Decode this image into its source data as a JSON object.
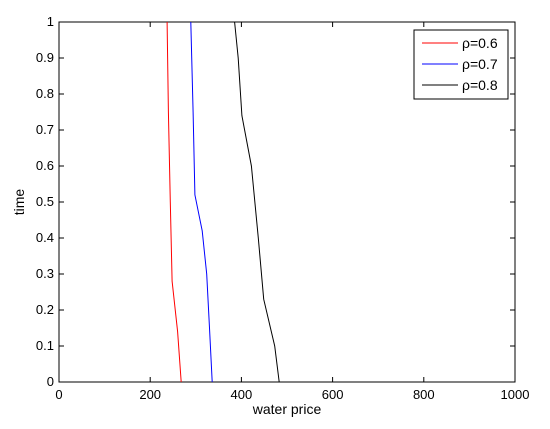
{
  "chart_data": {
    "type": "line",
    "title": "",
    "xlabel": "water price",
    "ylabel": "time",
    "xlim": [
      0,
      1000
    ],
    "ylim": [
      0,
      1
    ],
    "xticks": [
      0,
      200,
      400,
      600,
      800,
      1000
    ],
    "yticks": [
      0,
      0.1,
      0.2,
      0.3,
      0.4,
      0.5,
      0.6,
      0.7,
      0.8,
      0.9,
      1
    ],
    "grid": false,
    "legend_position": "top-right",
    "series": [
      {
        "name": "ρ=0.6",
        "color": "#ff0000",
        "points": [
          [
            268,
            0
          ],
          [
            260,
            0.14
          ],
          [
            248,
            0.28
          ],
          [
            244,
            0.5
          ],
          [
            240,
            0.75
          ],
          [
            237,
            1
          ]
        ]
      },
      {
        "name": "ρ=0.7",
        "color": "#0000ff",
        "points": [
          [
            336,
            0
          ],
          [
            330,
            0.15
          ],
          [
            324,
            0.3
          ],
          [
            314,
            0.42
          ],
          [
            298,
            0.52
          ],
          [
            294,
            0.75
          ],
          [
            289,
            1
          ]
        ]
      },
      {
        "name": "ρ=0.8",
        "color": "#000000",
        "points": [
          [
            483,
            0
          ],
          [
            473,
            0.1
          ],
          [
            449,
            0.23
          ],
          [
            437,
            0.4
          ],
          [
            422,
            0.6
          ],
          [
            401,
            0.74
          ],
          [
            393,
            0.9
          ],
          [
            385,
            1
          ]
        ]
      }
    ]
  }
}
